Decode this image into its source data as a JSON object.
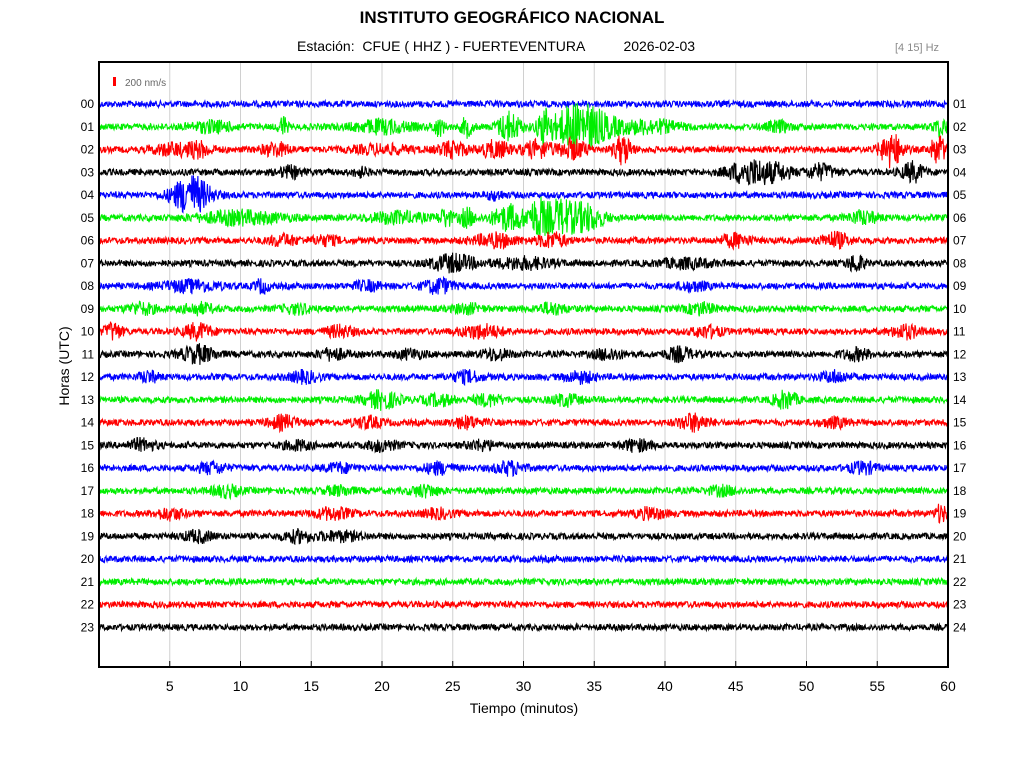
{
  "header": {
    "title": "INSTITUTO GEOGRÁFICO NACIONAL",
    "subtitle": "Estación:  CFUE ( HHZ ) - FUERTEVENTURA          2026-02-03",
    "filter_label": "[4 15] Hz"
  },
  "chart_data": {
    "type": "line",
    "title": "INSTITUTO GEOGRÁFICO NACIONAL",
    "xlabel": "Tiempo (minutos)",
    "ylabel": "Horas (UTC)",
    "xlim": [
      0,
      60
    ],
    "xticks": [
      "5",
      "10",
      "15",
      "20",
      "25",
      "30",
      "35",
      "40",
      "45",
      "50",
      "55",
      "60"
    ],
    "xtick_values": [
      5,
      10,
      15,
      20,
      25,
      30,
      35,
      40,
      45,
      50,
      55,
      60
    ],
    "grid": true,
    "scale_label": "200 nm/s",
    "scale_color": "#ff0000",
    "left_hour_labels": [
      "00",
      "01",
      "02",
      "03",
      "04",
      "05",
      "06",
      "07",
      "08",
      "09",
      "10",
      "11",
      "12",
      "13",
      "14",
      "15",
      "16",
      "17",
      "18",
      "19",
      "20",
      "21",
      "22",
      "23"
    ],
    "right_hour_labels": [
      "01",
      "02",
      "03",
      "04",
      "05",
      "06",
      "07",
      "08",
      "09",
      "10",
      "11",
      "12",
      "13",
      "14",
      "15",
      "16",
      "17",
      "18",
      "19",
      "20",
      "21",
      "22",
      "23",
      "24"
    ],
    "trace_colors": [
      "#0000ff",
      "#00ee00",
      "#ff0000",
      "#000000"
    ],
    "series": [
      {
        "events": []
      },
      {
        "events": [
          [
            8,
            1.5,
            5
          ],
          [
            13,
            0.3,
            10
          ],
          [
            20,
            2,
            6
          ],
          [
            24,
            0.4,
            8
          ],
          [
            26,
            0.4,
            9
          ],
          [
            29,
            0.8,
            14
          ],
          [
            31.5,
            0.5,
            16
          ],
          [
            33.5,
            1.5,
            16
          ],
          [
            35,
            1.8,
            12
          ],
          [
            39,
            2,
            6
          ],
          [
            48,
            0.8,
            5
          ],
          [
            59.5,
            0.5,
            8
          ]
        ]
      },
      {
        "events": [
          [
            5,
            1.2,
            5
          ],
          [
            7,
            1.0,
            7
          ],
          [
            12.5,
            1,
            6
          ],
          [
            20,
            2,
            4
          ],
          [
            25,
            1,
            7
          ],
          [
            28,
            1,
            8
          ],
          [
            31,
            1,
            8
          ],
          [
            33.5,
            1,
            9
          ],
          [
            37,
            0.6,
            14
          ],
          [
            56,
            0.8,
            16
          ],
          [
            59.3,
            0.5,
            14
          ]
        ]
      },
      {
        "events": [
          [
            13.5,
            0.8,
            5
          ],
          [
            18.5,
            0.5,
            4
          ],
          [
            46,
            1.5,
            12
          ],
          [
            48,
            1,
            6
          ],
          [
            51,
            1,
            7
          ],
          [
            57.5,
            0.8,
            9
          ]
        ]
      },
      {
        "events": [
          [
            6.5,
            1.3,
            19
          ],
          [
            28,
            0.6,
            4
          ]
        ]
      },
      {
        "events": [
          [
            10,
            3,
            6
          ],
          [
            21,
            2,
            5
          ],
          [
            24.5,
            0.5,
            8
          ],
          [
            26,
            0.5,
            9
          ],
          [
            29,
            1.2,
            12
          ],
          [
            31,
            0.6,
            15
          ],
          [
            32.5,
            1.2,
            16
          ],
          [
            34.5,
            1.2,
            12
          ],
          [
            54,
            1,
            6
          ]
        ]
      },
      {
        "events": [
          [
            13,
            1,
            5
          ],
          [
            16,
            1,
            4
          ],
          [
            28,
            1.5,
            6
          ],
          [
            32,
            1,
            7
          ],
          [
            45,
            1,
            6
          ],
          [
            52,
            1,
            7
          ]
        ]
      },
      {
        "events": [
          [
            25,
            1.5,
            8
          ],
          [
            30,
            2,
            5
          ],
          [
            41.5,
            2,
            4
          ],
          [
            53.5,
            0.6,
            8
          ]
        ]
      },
      {
        "events": [
          [
            6.5,
            2,
            5
          ],
          [
            11.5,
            0.5,
            6
          ],
          [
            19,
            1,
            4
          ],
          [
            24,
            1,
            7
          ],
          [
            42,
            1,
            4
          ]
        ]
      },
      {
        "events": [
          [
            3,
            1,
            5
          ],
          [
            7,
            1,
            5
          ],
          [
            14,
            1,
            4
          ],
          [
            26,
            1,
            4
          ],
          [
            32,
            1,
            5
          ],
          [
            42.5,
            1,
            5
          ]
        ]
      },
      {
        "events": [
          [
            1,
            0.6,
            8
          ],
          [
            7,
            1,
            7
          ],
          [
            17,
            1,
            5
          ],
          [
            27,
            1.5,
            6
          ],
          [
            43,
            1,
            5
          ],
          [
            57,
            1,
            6
          ]
        ]
      },
      {
        "events": [
          [
            7,
            1.2,
            8
          ],
          [
            16.5,
            1,
            5
          ],
          [
            22,
            1,
            4
          ],
          [
            28,
            1,
            5
          ],
          [
            36,
            1,
            5
          ],
          [
            41,
            1,
            6
          ],
          [
            53.5,
            1,
            5
          ]
        ]
      },
      {
        "events": [
          [
            3.5,
            0.7,
            5
          ],
          [
            14.5,
            1,
            5
          ],
          [
            26,
            1,
            5
          ],
          [
            34,
            1,
            5
          ],
          [
            52,
            1,
            5
          ]
        ]
      },
      {
        "events": [
          [
            20,
            1.2,
            8
          ],
          [
            24,
            1,
            5
          ],
          [
            27.5,
            1,
            5
          ],
          [
            33,
            1,
            5
          ],
          [
            48.5,
            0.8,
            8
          ]
        ]
      },
      {
        "events": [
          [
            13,
            1,
            6
          ],
          [
            19,
            1,
            5
          ],
          [
            26,
            1,
            5
          ],
          [
            42,
            1,
            8
          ],
          [
            52,
            1,
            4
          ]
        ]
      },
      {
        "events": [
          [
            3,
            1,
            5
          ],
          [
            14,
            1,
            4
          ],
          [
            20,
            1,
            5
          ],
          [
            27,
            1,
            4
          ],
          [
            38,
            1,
            5
          ]
        ]
      },
      {
        "events": [
          [
            8,
            1,
            5
          ],
          [
            17,
            1,
            4
          ],
          [
            24,
            1,
            5
          ],
          [
            29,
            1,
            6
          ],
          [
            54,
            1,
            5
          ]
        ]
      },
      {
        "events": [
          [
            9,
            1,
            5
          ],
          [
            17,
            1,
            4
          ],
          [
            23,
            1,
            5
          ],
          [
            44,
            1,
            4
          ]
        ]
      },
      {
        "events": [
          [
            5,
            1,
            5
          ],
          [
            16.5,
            1.3,
            5
          ],
          [
            24,
            1,
            4
          ],
          [
            39,
            1,
            5
          ],
          [
            59.5,
            0.4,
            8
          ]
        ]
      },
      {
        "events": [
          [
            7,
            1,
            5
          ],
          [
            14,
            1,
            5
          ],
          [
            17,
            1.5,
            4
          ]
        ]
      },
      {
        "events": []
      },
      {
        "events": []
      },
      {
        "events": []
      },
      {
        "events": []
      }
    ]
  }
}
